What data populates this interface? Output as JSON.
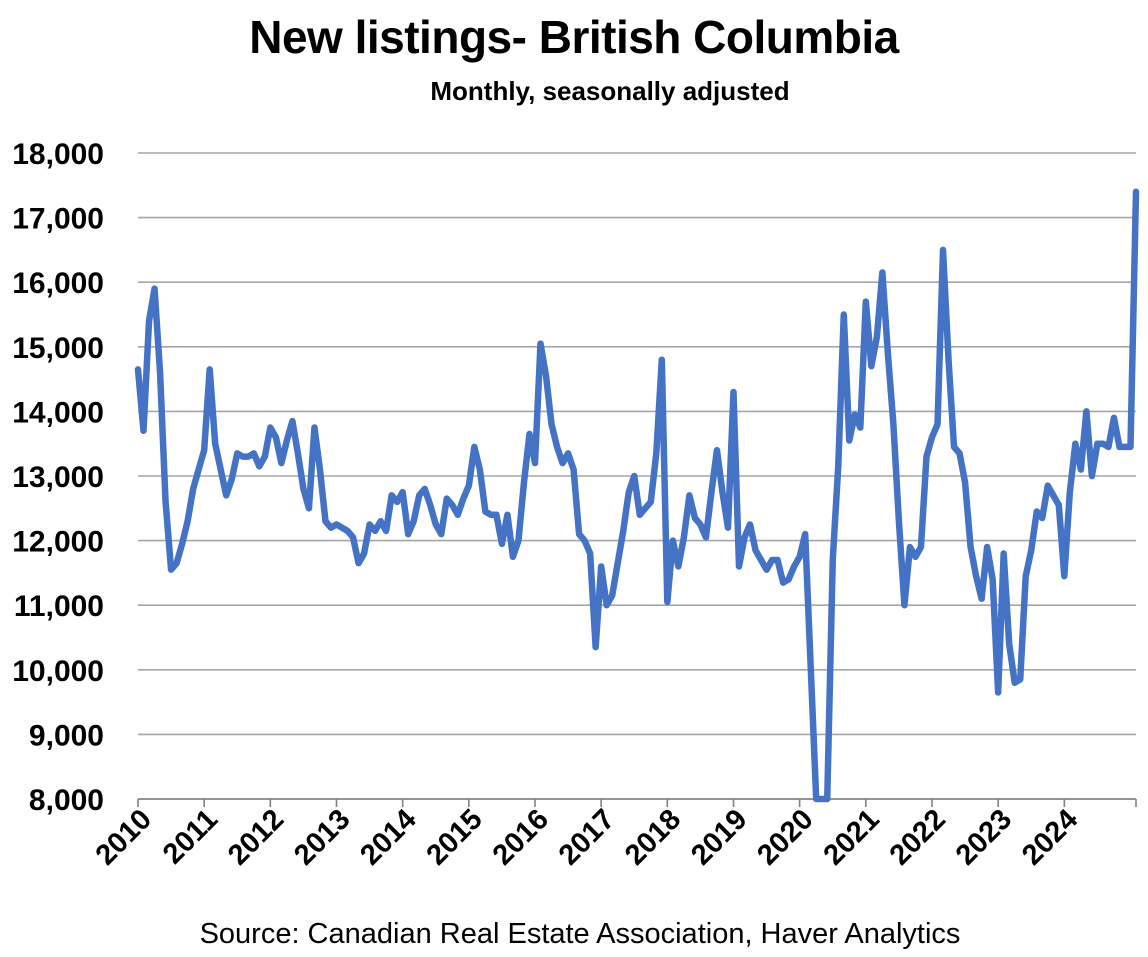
{
  "chart_data": {
    "type": "line",
    "title": "New listings- British Columbia",
    "subtitle": "Monthly, seasonally adjusted",
    "source": "Source: Canadian Real Estate Association, Haver Analytics",
    "ylim": [
      8000,
      18000
    ],
    "yticks": [
      "8,000",
      "9,000",
      "10,000",
      "11,000",
      "12,000",
      "13,000",
      "14,000",
      "15,000",
      "16,000",
      "17,000",
      "18,000"
    ],
    "xticks": [
      "2010",
      "2011",
      "2012",
      "2013",
      "2014",
      "2015",
      "2016",
      "2017",
      "2018",
      "2019",
      "2020",
      "2021",
      "2022",
      "2023",
      "2024"
    ],
    "grid": true,
    "legend": "none",
    "line_color": "#4472C4",
    "x_start": "2010-01",
    "series": [
      {
        "values": [
          14650,
          13700,
          15400,
          15900,
          14600,
          12600,
          11550,
          11650,
          11950,
          12300,
          12800,
          13100,
          13400,
          14650,
          13500,
          13100,
          12700,
          12950,
          13350,
          13300,
          13300,
          13350,
          13150,
          13300,
          13750,
          13600,
          13200,
          13550,
          13850,
          13350,
          12800,
          12500,
          13750,
          13100,
          12300,
          12200,
          12250,
          12200,
          12150,
          12050,
          11650,
          11800,
          12250,
          12150,
          12300,
          12150,
          12700,
          12600,
          12750,
          12100,
          12300,
          12700,
          12800,
          12550,
          12250,
          12100,
          12650,
          12550,
          12400,
          12650,
          12850,
          13450,
          13100,
          12450,
          12400,
          12400,
          11950,
          12400,
          11750,
          12000,
          12900,
          13650,
          13200,
          15050,
          14550,
          13800,
          13450,
          13200,
          13350,
          13100,
          12100,
          12000,
          11800,
          10350,
          11600,
          11000,
          11150,
          11650,
          12150,
          12750,
          13000,
          12400,
          12500,
          12600,
          13350,
          14800,
          11050,
          12000,
          11600,
          12050,
          12700,
          12350,
          12250,
          12050,
          12750,
          13400,
          12750,
          12200,
          14300,
          11600,
          12050,
          12250,
          11850,
          11700,
          11550,
          11700,
          11700,
          11350,
          11400,
          11600,
          11750,
          12100,
          10050,
          7950,
          7950,
          7950,
          11700,
          13150,
          15500,
          13550,
          13950,
          13750,
          15700,
          14700,
          15150,
          16150,
          14900,
          13800,
          12300,
          11000,
          11900,
          11750,
          11900,
          13300,
          13600,
          13800,
          16500,
          14800,
          13450,
          13350,
          12900,
          11900,
          11450,
          11100,
          11900,
          11400,
          9650,
          11800,
          10400,
          9800,
          9850,
          11450,
          11850,
          12450,
          12350,
          12850,
          12700,
          12550,
          11450,
          12750,
          13500,
          13100,
          14000,
          13000,
          13500,
          13500,
          13450,
          13900,
          13450,
          13450,
          13450,
          17400
        ]
      }
    ]
  }
}
